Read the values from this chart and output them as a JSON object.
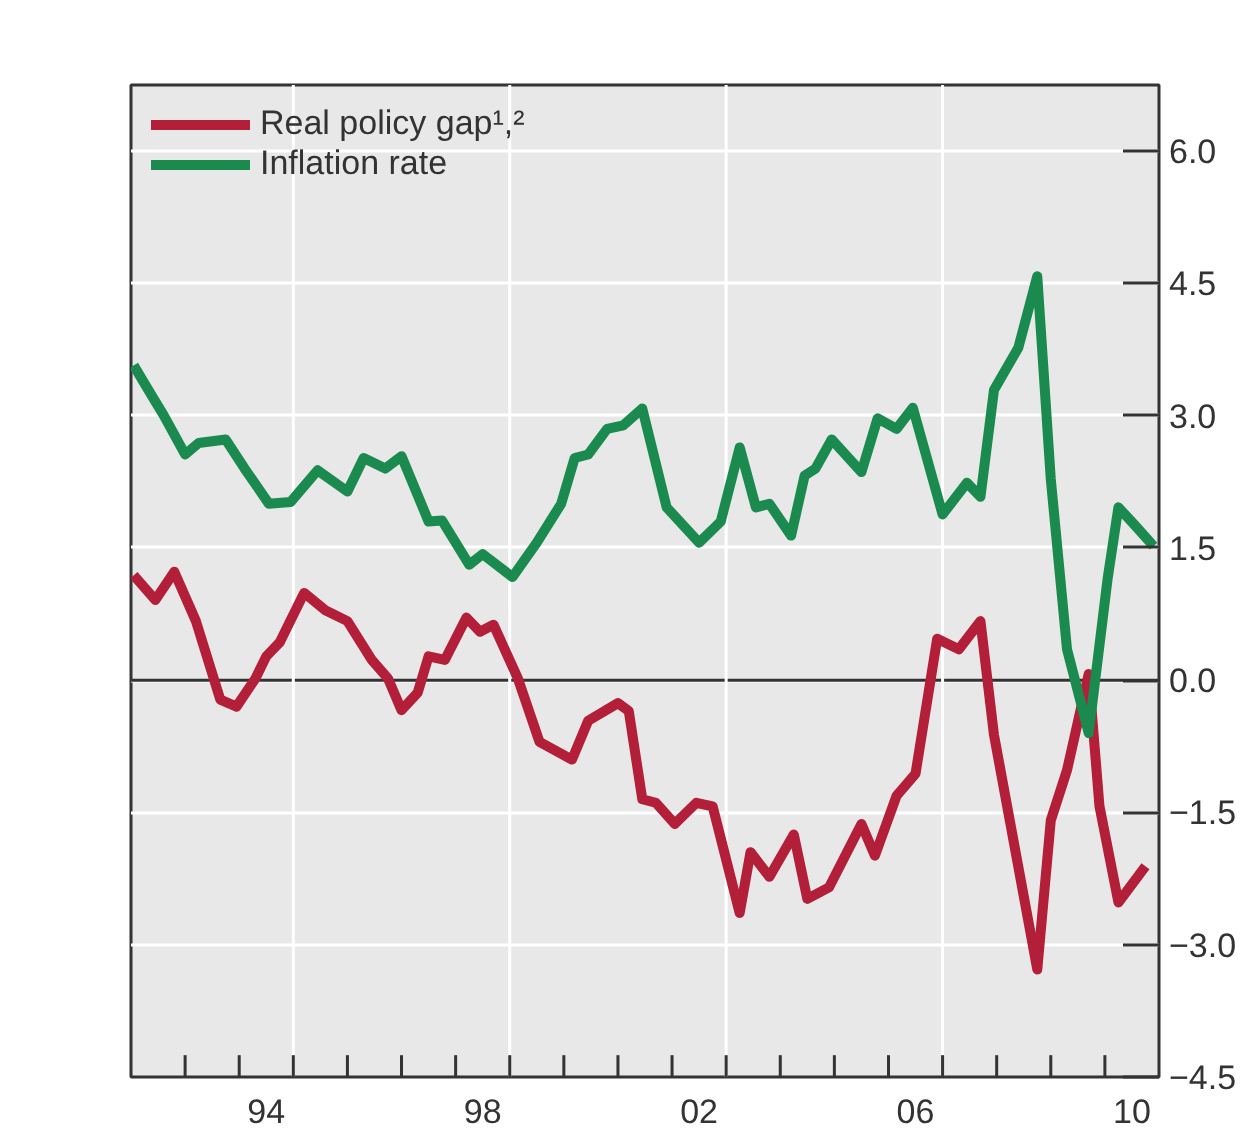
{
  "chart_data": {
    "type": "line",
    "xlim": [
      1991.5,
      2010.5
    ],
    "xticks": [
      {
        "value": 1992.5,
        "label": null
      },
      {
        "value": 1993.5,
        "label": null
      },
      {
        "value": 1994,
        "label": "94"
      },
      {
        "value": 1994.5,
        "label": null
      },
      {
        "value": 1995.5,
        "label": null
      },
      {
        "value": 1996.5,
        "label": null
      },
      {
        "value": 1997.5,
        "label": null
      },
      {
        "value": 1998,
        "label": "98"
      },
      {
        "value": 1998.5,
        "label": null
      },
      {
        "value": 1999.5,
        "label": null
      },
      {
        "value": 2000.5,
        "label": null
      },
      {
        "value": 2001.5,
        "label": null
      },
      {
        "value": 2002,
        "label": "02"
      },
      {
        "value": 2002.5,
        "label": null
      },
      {
        "value": 2003.5,
        "label": null
      },
      {
        "value": 2004.5,
        "label": null
      },
      {
        "value": 2005.5,
        "label": null
      },
      {
        "value": 2006,
        "label": "06"
      },
      {
        "value": 2006.5,
        "label": null
      },
      {
        "value": 2007.5,
        "label": null
      },
      {
        "value": 2008.5,
        "label": null
      },
      {
        "value": 2009.5,
        "label": null
      },
      {
        "value": 2010,
        "label": "10"
      }
    ],
    "ylim": [
      -4.5,
      6.75
    ],
    "yticks": [
      {
        "value": -4.5,
        "label": "−4.5"
      },
      {
        "value": -3.0,
        "label": "−3.0"
      },
      {
        "value": -1.5,
        "label": "−1.5"
      },
      {
        "value": 0,
        "label": "0.0"
      },
      {
        "value": 1.5,
        "label": "1.5"
      },
      {
        "value": 3.0,
        "label": "3.0"
      },
      {
        "value": 4.5,
        "label": "4.5"
      },
      {
        "value": 6.0,
        "label": "6.0"
      }
    ],
    "grid": "y",
    "legend": "top left",
    "line_style": "solid",
    "ref_lines": [
      {
        "axis": "y",
        "value": 0,
        "color": "#333333"
      },
      {
        "axis": "x",
        "value": 1994.5,
        "color": "#ffffff"
      },
      {
        "axis": "x",
        "value": 1998.5,
        "color": "#ffffff"
      },
      {
        "axis": "x",
        "value": 2002.5,
        "color": "#ffffff"
      },
      {
        "axis": "x",
        "value": 2006.5,
        "color": "#ffffff"
      }
    ],
    "series": [
      {
        "name": "Real policy gap¹,²",
        "color": "#b31e38",
        "x": [
          1991.55,
          1991.95,
          1992.3,
          1992.7,
          1993.15,
          1993.45,
          1993.8,
          1994.0,
          1994.25,
          1994.7,
          1995.1,
          1995.5,
          1995.95,
          1996.25,
          1996.5,
          1996.8,
          1997.0,
          1997.3,
          1997.7,
          1997.95,
          1998.2,
          1998.65,
          1999.05,
          1999.65,
          1999.95,
          2000.5,
          2000.7,
          2000.95,
          2001.2,
          2001.55,
          2001.95,
          2002.25,
          2002.75,
          2002.95,
          2003.3,
          2003.75,
          2004.0,
          2004.4,
          2005.0,
          2005.25,
          2005.65,
          2006.0,
          2006.4,
          2006.8,
          2007.2,
          2007.45,
          2008.25,
          2008.5,
          2008.8,
          2009.2,
          2009.4,
          2009.75,
          2010.25
        ],
        "values": [
          1.19,
          0.91,
          1.23,
          0.67,
          -0.22,
          -0.3,
          0.02,
          0.27,
          0.43,
          0.99,
          0.79,
          0.67,
          0.23,
          0.02,
          -0.34,
          -0.14,
          0.27,
          0.23,
          0.71,
          0.55,
          0.63,
          0.02,
          -0.7,
          -0.9,
          -0.46,
          -0.26,
          -0.35,
          -1.35,
          -1.39,
          -1.63,
          -1.39,
          -1.43,
          -2.64,
          -1.95,
          -2.23,
          -1.75,
          -2.48,
          -2.35,
          -1.63,
          -1.99,
          -1.31,
          -1.06,
          0.47,
          0.35,
          0.67,
          -0.62,
          -3.28,
          -1.59,
          -1.02,
          0.07,
          -1.43,
          -2.52,
          -2.11
        ]
      },
      {
        "name": "Inflation rate",
        "color": "#1a8a4e",
        "x": [
          1991.55,
          1991.9,
          1992.1,
          1992.5,
          1992.75,
          1993.25,
          1993.6,
          1994.05,
          1994.45,
          1994.95,
          1995.5,
          1995.8,
          1996.2,
          1996.5,
          1997.0,
          1997.25,
          1997.75,
          1998.0,
          1998.55,
          1999.0,
          1999.45,
          1999.7,
          1999.95,
          2000.3,
          2000.6,
          2000.95,
          2001.4,
          2002.0,
          2002.4,
          2002.75,
          2003.05,
          2003.3,
          2003.7,
          2003.95,
          2004.15,
          2004.45,
          2005.0,
          2005.3,
          2005.65,
          2005.95,
          2006.5,
          2006.95,
          2007.2,
          2007.45,
          2007.9,
          2008.25,
          2008.5,
          2008.8,
          2009.2,
          2009.55,
          2009.75,
          2010.05,
          2010.4
        ],
        "values": [
          3.57,
          3.21,
          3.01,
          2.56,
          2.69,
          2.73,
          2.4,
          2.0,
          2.02,
          2.38,
          2.14,
          2.52,
          2.4,
          2.54,
          1.8,
          1.81,
          1.31,
          1.43,
          1.17,
          1.56,
          2.0,
          2.52,
          2.56,
          2.85,
          2.89,
          3.08,
          1.96,
          1.56,
          1.8,
          2.64,
          1.96,
          2.0,
          1.64,
          2.32,
          2.4,
          2.73,
          2.36,
          2.97,
          2.85,
          3.09,
          1.88,
          2.24,
          2.08,
          3.29,
          3.77,
          4.58,
          2.28,
          0.35,
          -0.6,
          1.15,
          1.96,
          1.76,
          1.52
        ]
      }
    ]
  }
}
